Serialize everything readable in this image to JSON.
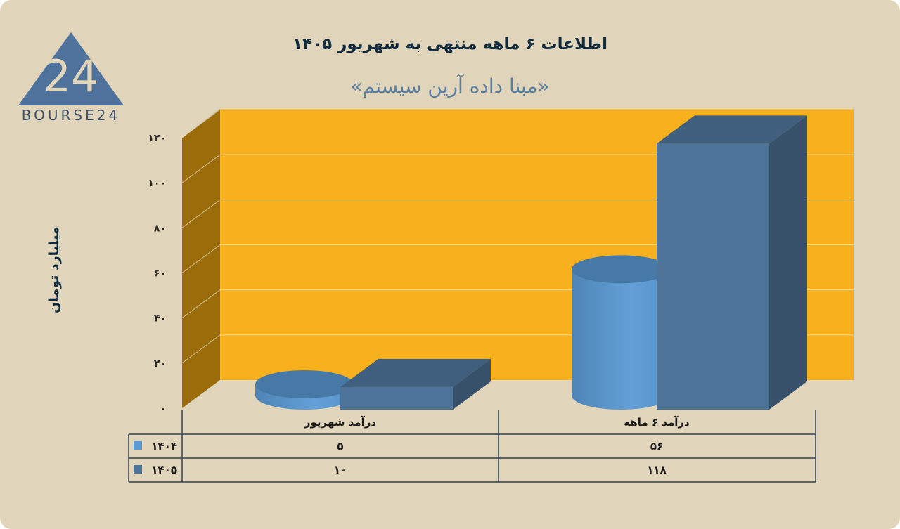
{
  "brand": {
    "logo_text": "BOURSE24",
    "logo_glyph": "24"
  },
  "chart_data": {
    "type": "bar",
    "title": "اطلاعات ۶ ماهه منتهی به شهریور ۱۴۰۵",
    "subtitle": "«مبنا داده آرین سیستم»",
    "ylabel": "میلیارد تومان",
    "ylim": [
      0,
      120
    ],
    "yticks": [
      "۰",
      "۲۰",
      "۴۰",
      "۶۰",
      "۸۰",
      "۱۰۰",
      "۱۲۰"
    ],
    "ytick_values": [
      0,
      20,
      40,
      60,
      80,
      100,
      120
    ],
    "categories": [
      "درآمد شهریور",
      "درآمد ۶ ماهه"
    ],
    "series": [
      {
        "name": "۱۴۰۴",
        "values": [
          5,
          56
        ],
        "value_labels": [
          "۵",
          "۵۶"
        ],
        "color": "#5b9bd5",
        "shape": "cylinder"
      },
      {
        "name": "۱۴۰۵",
        "values": [
          10,
          118
        ],
        "value_labels": [
          "۱۰",
          "۱۱۸"
        ],
        "color": "#4e7399",
        "shape": "box"
      }
    ],
    "wall_color": "#f8b01c",
    "side_wall_color": "#9a6c0a",
    "grid": true,
    "legend": "data-table"
  }
}
